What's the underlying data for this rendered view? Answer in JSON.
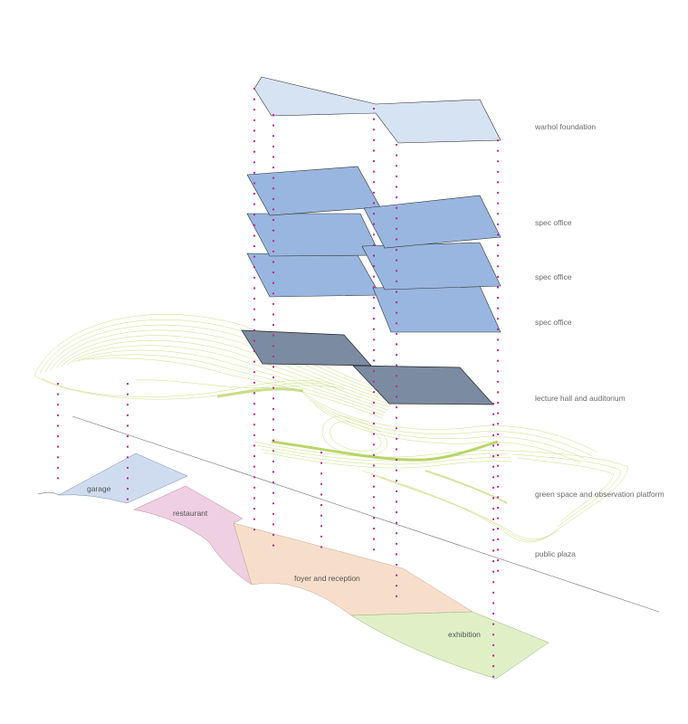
{
  "diagram": {
    "layer_labels": {
      "warhol": "warhol foundation",
      "spec_office_1": "spec office",
      "spec_office_2": "spec office",
      "spec_office_3": "spec office",
      "lecture": "lecture hall and auditorium",
      "green": "green space and observation platform",
      "plaza": "public plaza"
    },
    "ground_labels": {
      "garage": "garage",
      "restaurant": "restaurant",
      "foyer": "foyer and reception",
      "exhibition": "exhibition"
    },
    "colors": {
      "warhol_fill": "#d6e3f3",
      "office_fill": "#98b6df",
      "lecture_fill": "#7b8ba2",
      "garage_fill": "#cfdcf0",
      "restaurant_fill": "#efcfe2",
      "foyer_fill": "#f7decb",
      "exhibition_fill": "#dff0c6",
      "contour_stroke": "#c9de7e",
      "dots": "#c2229b",
      "label_text": "#6b6b6b"
    }
  }
}
